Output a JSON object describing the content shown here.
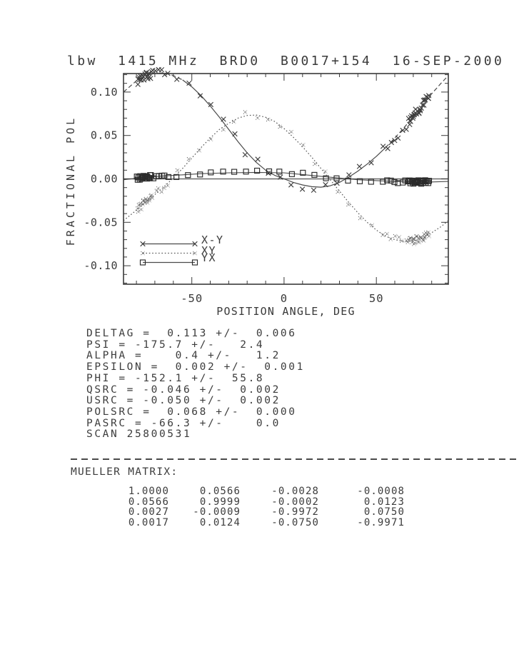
{
  "title": "lbw  1415 MHz  BRD0  B0017+154  16-SEP-2000",
  "chart_data": {
    "type": "line",
    "title": "lbw  1415 MHz  BRD0  B0017+154  16-SEP-2000",
    "xlabel": "POSITION ANGLE, DEG",
    "ylabel": "FRACTIONAL POL",
    "xlim": [
      -87,
      89
    ],
    "ylim": [
      -0.1213,
      0.1213
    ],
    "grid": false,
    "legend_position": "inside-bottom-left",
    "x_ticks": [
      {
        "v": -50,
        "label": "-50"
      },
      {
        "v": 0,
        "label": "0"
      },
      {
        "v": 50,
        "label": "50"
      }
    ],
    "x_minor_step": 10,
    "y_ticks": [
      {
        "v": 0.1,
        "label": "0.10"
      },
      {
        "v": 0.05,
        "label": "0.05"
      },
      {
        "v": 0.0,
        "label": "0.00"
      },
      {
        "v": -0.05,
        "label": "-0.05"
      },
      {
        "v": -0.1,
        "label": "-0.10"
      }
    ],
    "y_minor_step": 0.01,
    "zero_line": true,
    "series": [
      {
        "name": "X-Y",
        "marker": "x",
        "line": "solid-with-dashed-ends",
        "fit": [
          [
            -87,
            0.1
          ],
          [
            -80,
            0.113
          ],
          [
            -75,
            0.119
          ],
          [
            -70,
            0.1215
          ],
          [
            -65,
            0.122
          ],
          [
            -60,
            0.119
          ],
          [
            -55,
            0.114
          ],
          [
            -50,
            0.106
          ],
          [
            -45,
            0.096
          ],
          [
            -40,
            0.084
          ],
          [
            -35,
            0.071
          ],
          [
            -30,
            0.057
          ],
          [
            -25,
            0.043
          ],
          [
            -20,
            0.03
          ],
          [
            -15,
            0.019
          ],
          [
            -10,
            0.01
          ],
          [
            -5,
            0.004
          ],
          [
            0,
            0.0
          ],
          [
            5,
            -0.004
          ],
          [
            10,
            -0.007
          ],
          [
            15,
            -0.009
          ],
          [
            20,
            -0.0095
          ],
          [
            25,
            -0.008
          ],
          [
            30,
            -0.004
          ],
          [
            35,
            0.002
          ],
          [
            40,
            0.009
          ],
          [
            45,
            0.017
          ],
          [
            50,
            0.026
          ],
          [
            55,
            0.036
          ],
          [
            60,
            0.047
          ],
          [
            65,
            0.059
          ],
          [
            70,
            0.072
          ],
          [
            75,
            0.085
          ],
          [
            80,
            0.098
          ],
          [
            85,
            0.11
          ],
          [
            89,
            0.119
          ]
        ]
      },
      {
        "name": "XY",
        "marker": "dot-x",
        "line": "dotted",
        "fit": [
          [
            -87,
            -0.048
          ],
          [
            -80,
            -0.036
          ],
          [
            -75,
            -0.027
          ],
          [
            -70,
            -0.018
          ],
          [
            -65,
            -0.009
          ],
          [
            -60,
            0.001
          ],
          [
            -55,
            0.012
          ],
          [
            -50,
            0.024
          ],
          [
            -45,
            0.036
          ],
          [
            -40,
            0.047
          ],
          [
            -35,
            0.057
          ],
          [
            -30,
            0.064
          ],
          [
            -25,
            0.07
          ],
          [
            -20,
            0.073
          ],
          [
            -15,
            0.0735
          ],
          [
            -10,
            0.071
          ],
          [
            -5,
            0.066
          ],
          [
            0,
            0.058
          ],
          [
            5,
            0.048
          ],
          [
            10,
            0.037
          ],
          [
            15,
            0.025
          ],
          [
            20,
            0.012
          ],
          [
            25,
            -0.001
          ],
          [
            30,
            -0.014
          ],
          [
            35,
            -0.027
          ],
          [
            40,
            -0.039
          ],
          [
            45,
            -0.05
          ],
          [
            50,
            -0.059
          ],
          [
            55,
            -0.066
          ],
          [
            60,
            -0.07
          ],
          [
            65,
            -0.072
          ],
          [
            70,
            -0.0715
          ],
          [
            75,
            -0.068
          ],
          [
            80,
            -0.062
          ],
          [
            85,
            -0.055
          ],
          [
            89,
            -0.048
          ]
        ]
      },
      {
        "name": "YX",
        "marker": "square",
        "line": "solid",
        "fit": [
          [
            -87,
            -0.001
          ],
          [
            -75,
            0.002
          ],
          [
            -60,
            0.004
          ],
          [
            -45,
            0.006
          ],
          [
            -30,
            0.007
          ],
          [
            -15,
            0.0075
          ],
          [
            0,
            0.007
          ],
          [
            10,
            0.005
          ],
          [
            20,
            0.003
          ],
          [
            30,
            0.001
          ],
          [
            40,
            -0.001
          ],
          [
            50,
            -0.002
          ],
          [
            60,
            -0.003
          ],
          [
            70,
            -0.0035
          ],
          [
            80,
            -0.0035
          ],
          [
            89,
            -0.003
          ]
        ]
      }
    ],
    "marker_pa_groups": [
      {
        "from": -79.5,
        "to": -71.5,
        "step": 0.45
      },
      {
        "from": -71.0,
        "to": -62.0,
        "step": 1.6
      },
      {
        "from": -58.0,
        "to": 54.0,
        "step": 6.2
      },
      {
        "from": 56.0,
        "to": 67.0,
        "step": 2.0
      },
      {
        "from": 67.4,
        "to": 79.0,
        "step": 0.42
      }
    ]
  },
  "stats": {
    "lines": [
      "DELTAG =  0.113 +/-  0.006",
      "PSI = -175.7 +/-   2.4",
      "ALPHA =    0.4 +/-   1.2",
      "EPSILON =  0.002 +/-  0.001",
      "PHI = -152.1 +/-  55.8",
      "QSRC = -0.046 +/-  0.002",
      "USRC = -0.050 +/-  0.002",
      "POLSRC =  0.068 +/-  0.000",
      "PASRC = -66.3 +/-    0.0",
      "SCAN 25800531"
    ]
  },
  "mueller": {
    "label": "MUELLER MATRIX:",
    "rows": [
      [
        "1.0000",
        "0.0566",
        "-0.0028",
        "-0.0008"
      ],
      [
        "0.0566",
        "0.9999",
        "-0.0002",
        "0.0123"
      ],
      [
        "0.0027",
        "-0.0009",
        "-0.9972",
        "0.0750"
      ],
      [
        "0.0017",
        "0.0124",
        "-0.0750",
        "-0.9971"
      ]
    ]
  },
  "colors": {
    "ink": "#3a3a3a",
    "fit_line": "#4a4a4a",
    "dotted_line": "#565656",
    "zero_line": "#6a6a6a",
    "background": "#ffffff"
  }
}
